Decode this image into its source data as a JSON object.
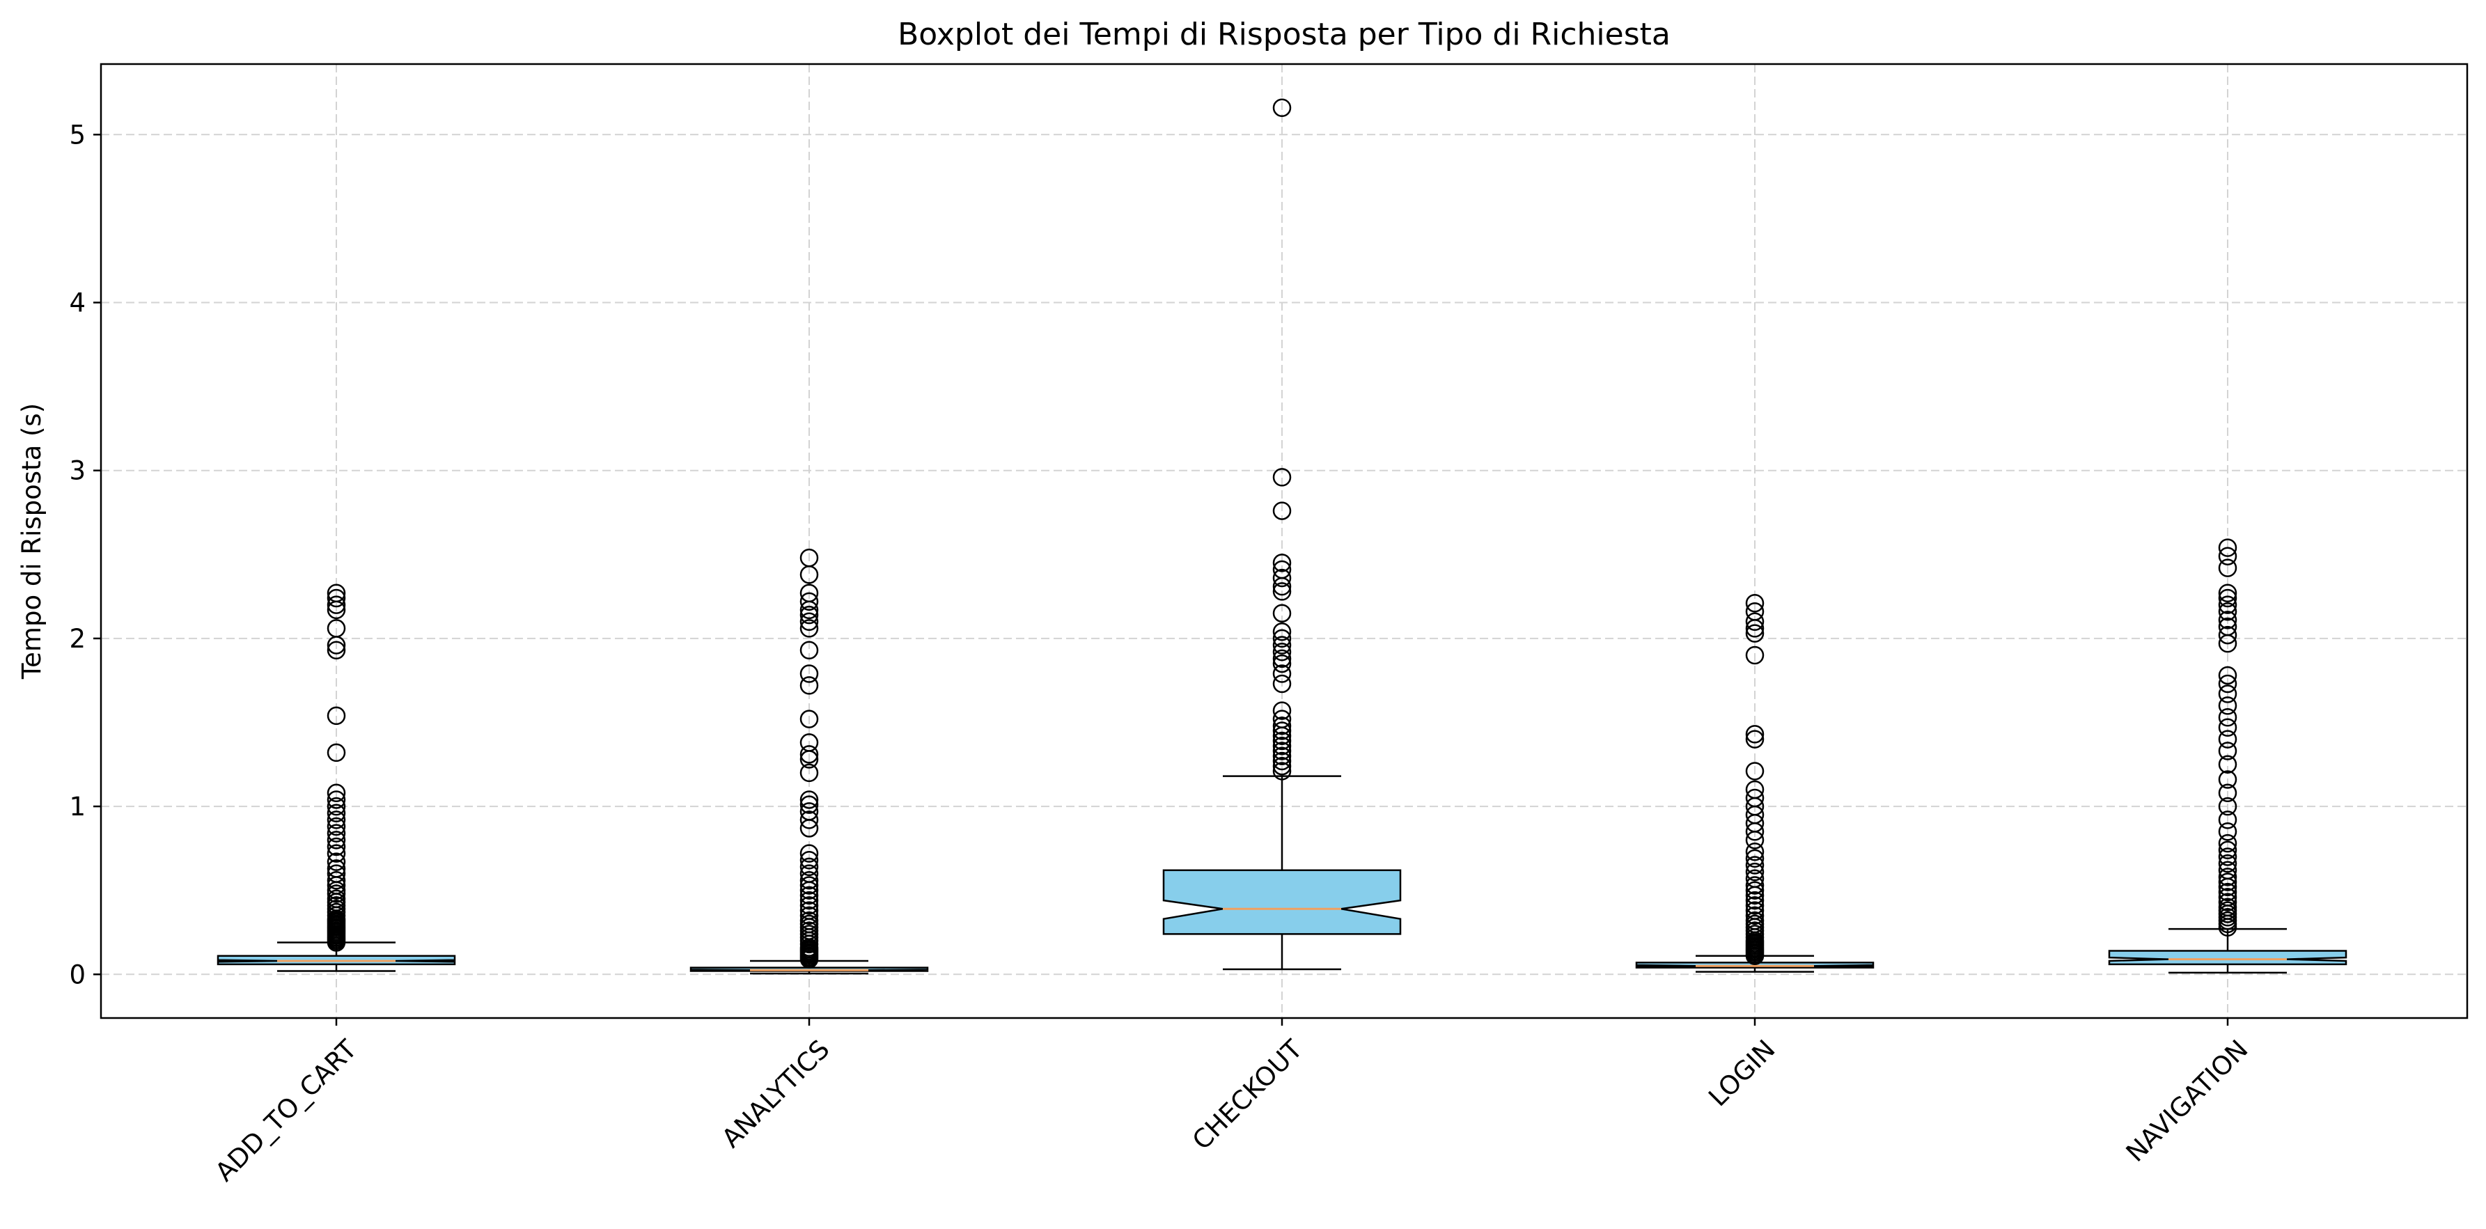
{
  "chart_data": {
    "type": "boxplot",
    "title": "Boxplot dei Tempi di Risposta per Tipo di Richiesta",
    "xlabel": "",
    "ylabel": "Tempo di Risposta (s)",
    "ylim": [
      -0.26,
      5.42
    ],
    "yticks": [
      0,
      1,
      2,
      3,
      4,
      5
    ],
    "grid": true,
    "notched": true,
    "box_color": "#87CEEB",
    "median_color": "#F0A060",
    "categories": [
      "ADD_TO_CART",
      "ANALYTICS",
      "CHECKOUT",
      "LOGIN",
      "NAVIGATION"
    ],
    "boxes": [
      {
        "category": "ADD_TO_CART",
        "whisker_low": 0.02,
        "q1": 0.06,
        "median": 0.08,
        "q3": 0.11,
        "whisker_high": 0.19,
        "notch_low": 0.075,
        "notch_high": 0.085,
        "outliers": [
          0.19,
          0.2,
          0.21,
          0.22,
          0.23,
          0.24,
          0.25,
          0.26,
          0.27,
          0.28,
          0.29,
          0.3,
          0.31,
          0.32,
          0.33,
          0.35,
          0.37,
          0.39,
          0.41,
          0.43,
          0.45,
          0.48,
          0.5,
          0.53,
          0.56,
          0.6,
          0.63,
          0.67,
          0.72,
          0.76,
          0.8,
          0.84,
          0.88,
          0.92,
          0.96,
          1.0,
          1.04,
          1.08,
          1.32,
          1.54,
          1.93,
          1.96,
          2.06,
          2.17,
          2.2,
          2.24,
          2.27
        ]
      },
      {
        "category": "ANALYTICS",
        "whisker_low": 0.005,
        "q1": 0.02,
        "median": 0.025,
        "q3": 0.04,
        "whisker_high": 0.08,
        "notch_low": 0.022,
        "notch_high": 0.028,
        "outliers": [
          0.09,
          0.1,
          0.11,
          0.12,
          0.13,
          0.14,
          0.15,
          0.16,
          0.18,
          0.2,
          0.22,
          0.24,
          0.26,
          0.28,
          0.3,
          0.32,
          0.35,
          0.38,
          0.41,
          0.44,
          0.47,
          0.5,
          0.53,
          0.56,
          0.6,
          0.64,
          0.68,
          0.72,
          0.87,
          0.92,
          0.97,
          1.01,
          1.04,
          1.2,
          1.28,
          1.31,
          1.38,
          1.52,
          1.72,
          1.79,
          1.93,
          2.06,
          2.1,
          2.14,
          2.17,
          2.22,
          2.27,
          2.38,
          2.48
        ]
      },
      {
        "category": "CHECKOUT",
        "whisker_low": 0.03,
        "q1": 0.24,
        "median": 0.39,
        "q3": 0.62,
        "whisker_high": 1.18,
        "notch_low": 0.33,
        "notch_high": 0.44,
        "outliers": [
          1.21,
          1.24,
          1.27,
          1.3,
          1.33,
          1.36,
          1.39,
          1.42,
          1.45,
          1.48,
          1.52,
          1.57,
          1.73,
          1.79,
          1.85,
          1.88,
          1.92,
          1.96,
          2.0,
          2.04,
          2.15,
          2.28,
          2.31,
          2.36,
          2.41,
          2.45,
          2.76,
          2.96,
          5.16
        ]
      },
      {
        "category": "LOGIN",
        "whisker_low": 0.015,
        "q1": 0.04,
        "median": 0.05,
        "q3": 0.07,
        "whisker_high": 0.11,
        "notch_low": 0.045,
        "notch_high": 0.055,
        "outliers": [
          0.11,
          0.12,
          0.13,
          0.14,
          0.15,
          0.16,
          0.17,
          0.18,
          0.19,
          0.2,
          0.22,
          0.24,
          0.26,
          0.28,
          0.3,
          0.32,
          0.35,
          0.38,
          0.41,
          0.44,
          0.47,
          0.5,
          0.53,
          0.57,
          0.61,
          0.65,
          0.69,
          0.73,
          0.8,
          0.85,
          0.9,
          0.95,
          1.0,
          1.05,
          1.1,
          1.21,
          1.4,
          1.43,
          1.9,
          2.03,
          2.06,
          2.1,
          2.16,
          2.21
        ]
      },
      {
        "category": "NAVIGATION",
        "whisker_low": 0.01,
        "q1": 0.06,
        "median": 0.09,
        "q3": 0.14,
        "whisker_high": 0.27,
        "notch_low": 0.08,
        "notch_high": 0.1,
        "outliers": [
          0.28,
          0.3,
          0.32,
          0.34,
          0.36,
          0.38,
          0.4,
          0.43,
          0.46,
          0.49,
          0.52,
          0.55,
          0.58,
          0.62,
          0.66,
          0.7,
          0.74,
          0.78,
          0.85,
          0.92,
          1.0,
          1.08,
          1.16,
          1.25,
          1.33,
          1.4,
          1.47,
          1.53,
          1.6,
          1.67,
          1.73,
          1.78,
          1.97,
          2.02,
          2.07,
          2.11,
          2.16,
          2.2,
          2.24,
          2.27,
          2.42,
          2.49,
          2.54
        ]
      }
    ]
  }
}
